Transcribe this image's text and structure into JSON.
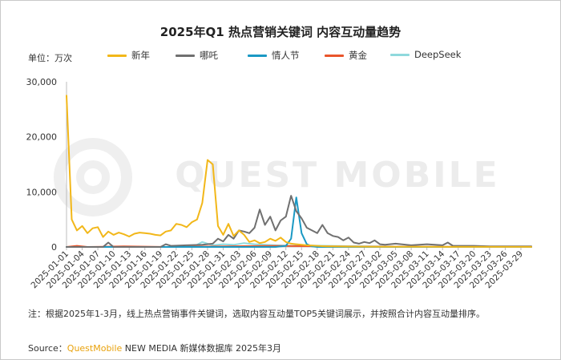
{
  "title": "2025年Q1 热点营销关键词 内容互动量趋势",
  "unit_label": "单位：万次",
  "watermark": "QUEST MOBILE",
  "note": "注：根据2025年1-3月，线上热点营销事件关键词，选取内容互动量TOP5关键词展示，并按照合计内容互动量排序。",
  "source": {
    "label": "Source：",
    "brand": "QuestMobile",
    "rest": " NEW MEDIA 新媒体数据库 2025年3月"
  },
  "chart_data": {
    "type": "line",
    "title": "2025年Q1 热点营销关键词 内容互动量趋势",
    "ylabel": "单位：万次",
    "ylim": [
      0,
      30000
    ],
    "yticks": [
      0,
      10000,
      20000,
      30000
    ],
    "ytick_labels": [
      "0",
      "10,000",
      "20,000",
      "30,000"
    ],
    "xlim": [
      "2025-01-01",
      "2025-03-31"
    ],
    "xtick_labels": [
      "2025-01-01",
      "2025-01-04",
      "2025-01-07",
      "2025-01-10",
      "2025-01-13",
      "2025-01-16",
      "2025-01-19",
      "2025-01-22",
      "2025-01-25",
      "2025-01-28",
      "2025-01-31",
      "2025-02-03",
      "2025-02-06",
      "2025-02-09",
      "2025-02-12",
      "2025-02-15",
      "2025-02-18",
      "2025-02-21",
      "2025-02-24",
      "2025-02-27",
      "2025-03-02",
      "2025-03-05",
      "2025-03-08",
      "2025-03-11",
      "2025-03-14",
      "2025-03-17",
      "2025-03-20",
      "2025-03-23",
      "2025-03-26",
      "2025-03-29"
    ],
    "grid": false,
    "legend": "top",
    "series": [
      {
        "name": "新年",
        "color": "#f2b719",
        "points": [
          [
            "2025-01-01",
            27500
          ],
          [
            "2025-01-02",
            5000
          ],
          [
            "2025-01-03",
            3000
          ],
          [
            "2025-01-04",
            3800
          ],
          [
            "2025-01-05",
            2500
          ],
          [
            "2025-01-06",
            3400
          ],
          [
            "2025-01-07",
            3600
          ],
          [
            "2025-01-08",
            1800
          ],
          [
            "2025-01-09",
            2800
          ],
          [
            "2025-01-10",
            2200
          ],
          [
            "2025-01-11",
            2600
          ],
          [
            "2025-01-12",
            2300
          ],
          [
            "2025-01-13",
            1900
          ],
          [
            "2025-01-14",
            2400
          ],
          [
            "2025-01-15",
            2600
          ],
          [
            "2025-01-16",
            2500
          ],
          [
            "2025-01-17",
            2400
          ],
          [
            "2025-01-18",
            2200
          ],
          [
            "2025-01-19",
            2100
          ],
          [
            "2025-01-20",
            2800
          ],
          [
            "2025-01-21",
            3000
          ],
          [
            "2025-01-22",
            4200
          ],
          [
            "2025-01-23",
            4000
          ],
          [
            "2025-01-24",
            3600
          ],
          [
            "2025-01-25",
            4500
          ],
          [
            "2025-01-26",
            5000
          ],
          [
            "2025-01-27",
            8000
          ],
          [
            "2025-01-28",
            15800
          ],
          [
            "2025-01-29",
            15000
          ],
          [
            "2025-01-30",
            3800
          ],
          [
            "2025-01-31",
            2200
          ],
          [
            "2025-02-01",
            4200
          ],
          [
            "2025-02-02",
            2000
          ],
          [
            "2025-02-03",
            3000
          ],
          [
            "2025-02-04",
            2200
          ],
          [
            "2025-02-05",
            900
          ],
          [
            "2025-02-06",
            1200
          ],
          [
            "2025-02-07",
            700
          ],
          [
            "2025-02-08",
            900
          ],
          [
            "2025-02-09",
            1500
          ],
          [
            "2025-02-10",
            1100
          ],
          [
            "2025-02-11",
            1700
          ],
          [
            "2025-02-12",
            900
          ],
          [
            "2025-02-13",
            600
          ],
          [
            "2025-02-14",
            500
          ],
          [
            "2025-02-15",
            400
          ],
          [
            "2025-02-16",
            300
          ],
          [
            "2025-02-17",
            250
          ],
          [
            "2025-02-18",
            200
          ],
          [
            "2025-02-19",
            150
          ],
          [
            "2025-02-20",
            100
          ],
          [
            "2025-02-21",
            100
          ],
          [
            "2025-02-24",
            80
          ],
          [
            "2025-02-27",
            60
          ],
          [
            "2025-03-02",
            50
          ],
          [
            "2025-03-05",
            40
          ],
          [
            "2025-03-08",
            30
          ],
          [
            "2025-03-11",
            30
          ],
          [
            "2025-03-14",
            20
          ],
          [
            "2025-03-17",
            20
          ],
          [
            "2025-03-20",
            20
          ],
          [
            "2025-03-23",
            10
          ],
          [
            "2025-03-26",
            10
          ],
          [
            "2025-03-31",
            10
          ]
        ]
      },
      {
        "name": "哪吒",
        "color": "#707070",
        "points": [
          [
            "2025-01-01",
            0
          ],
          [
            "2025-01-08",
            0
          ],
          [
            "2025-01-09",
            800
          ],
          [
            "2025-01-10",
            0
          ],
          [
            "2025-01-19",
            0
          ],
          [
            "2025-01-20",
            500
          ],
          [
            "2025-01-21",
            200
          ],
          [
            "2025-01-24",
            300
          ],
          [
            "2025-01-27",
            400
          ],
          [
            "2025-01-29",
            600
          ],
          [
            "2025-01-30",
            1500
          ],
          [
            "2025-01-31",
            1000
          ],
          [
            "2025-02-01",
            2200
          ],
          [
            "2025-02-02",
            1500
          ],
          [
            "2025-02-03",
            3000
          ],
          [
            "2025-02-04",
            2800
          ],
          [
            "2025-02-05",
            2500
          ],
          [
            "2025-02-06",
            3500
          ],
          [
            "2025-02-07",
            6800
          ],
          [
            "2025-02-08",
            4000
          ],
          [
            "2025-02-09",
            5500
          ],
          [
            "2025-02-10",
            3000
          ],
          [
            "2025-02-11",
            4800
          ],
          [
            "2025-02-12",
            5500
          ],
          [
            "2025-02-13",
            9300
          ],
          [
            "2025-02-14",
            6500
          ],
          [
            "2025-02-15",
            5200
          ],
          [
            "2025-02-16",
            3500
          ],
          [
            "2025-02-17",
            3000
          ],
          [
            "2025-02-18",
            2500
          ],
          [
            "2025-02-19",
            4000
          ],
          [
            "2025-02-20",
            2500
          ],
          [
            "2025-02-21",
            2000
          ],
          [
            "2025-02-22",
            1800
          ],
          [
            "2025-02-23",
            1200
          ],
          [
            "2025-02-24",
            1700
          ],
          [
            "2025-02-25",
            800
          ],
          [
            "2025-02-26",
            600
          ],
          [
            "2025-02-27",
            900
          ],
          [
            "2025-02-28",
            700
          ],
          [
            "2025-03-01",
            1200
          ],
          [
            "2025-03-02",
            500
          ],
          [
            "2025-03-03",
            400
          ],
          [
            "2025-03-05",
            600
          ],
          [
            "2025-03-08",
            300
          ],
          [
            "2025-03-11",
            500
          ],
          [
            "2025-03-14",
            300
          ],
          [
            "2025-03-15",
            800
          ],
          [
            "2025-03-16",
            200
          ],
          [
            "2025-03-20",
            200
          ],
          [
            "2025-03-23",
            100
          ],
          [
            "2025-03-26",
            100
          ],
          [
            "2025-03-31",
            100
          ]
        ]
      },
      {
        "name": "情人节",
        "color": "#1b99c4",
        "points": [
          [
            "2025-01-01",
            0
          ],
          [
            "2025-02-10",
            0
          ],
          [
            "2025-02-12",
            200
          ],
          [
            "2025-02-13",
            1500
          ],
          [
            "2025-02-14",
            9000
          ],
          [
            "2025-02-15",
            2500
          ],
          [
            "2025-02-16",
            500
          ],
          [
            "2025-02-17",
            100
          ],
          [
            "2025-02-18",
            0
          ],
          [
            "2025-03-31",
            0
          ]
        ]
      },
      {
        "name": "黄金",
        "color": "#e9552b",
        "points": [
          [
            "2025-01-01",
            0
          ],
          [
            "2025-01-03",
            200
          ],
          [
            "2025-01-05",
            0
          ],
          [
            "2025-01-12",
            100
          ],
          [
            "2025-01-20",
            0
          ],
          [
            "2025-02-10",
            200
          ],
          [
            "2025-02-20",
            100
          ],
          [
            "2025-03-05",
            50
          ],
          [
            "2025-03-31",
            0
          ]
        ]
      },
      {
        "name": "DeepSeek",
        "color": "#8fd9dd",
        "points": [
          [
            "2025-01-01",
            0
          ],
          [
            "2025-01-24",
            0
          ],
          [
            "2025-01-26",
            400
          ],
          [
            "2025-01-27",
            900
          ],
          [
            "2025-01-28",
            600
          ],
          [
            "2025-01-29",
            300
          ],
          [
            "2025-01-31",
            500
          ],
          [
            "2025-02-02",
            400
          ],
          [
            "2025-02-04",
            700
          ],
          [
            "2025-02-06",
            500
          ],
          [
            "2025-02-08",
            400
          ],
          [
            "2025-02-10",
            300
          ],
          [
            "2025-02-13",
            200
          ],
          [
            "2025-02-17",
            250
          ],
          [
            "2025-02-20",
            200
          ],
          [
            "2025-02-24",
            150
          ],
          [
            "2025-03-01",
            100
          ],
          [
            "2025-03-10",
            50
          ],
          [
            "2025-03-20",
            30
          ],
          [
            "2025-03-31",
            20
          ]
        ]
      }
    ]
  }
}
